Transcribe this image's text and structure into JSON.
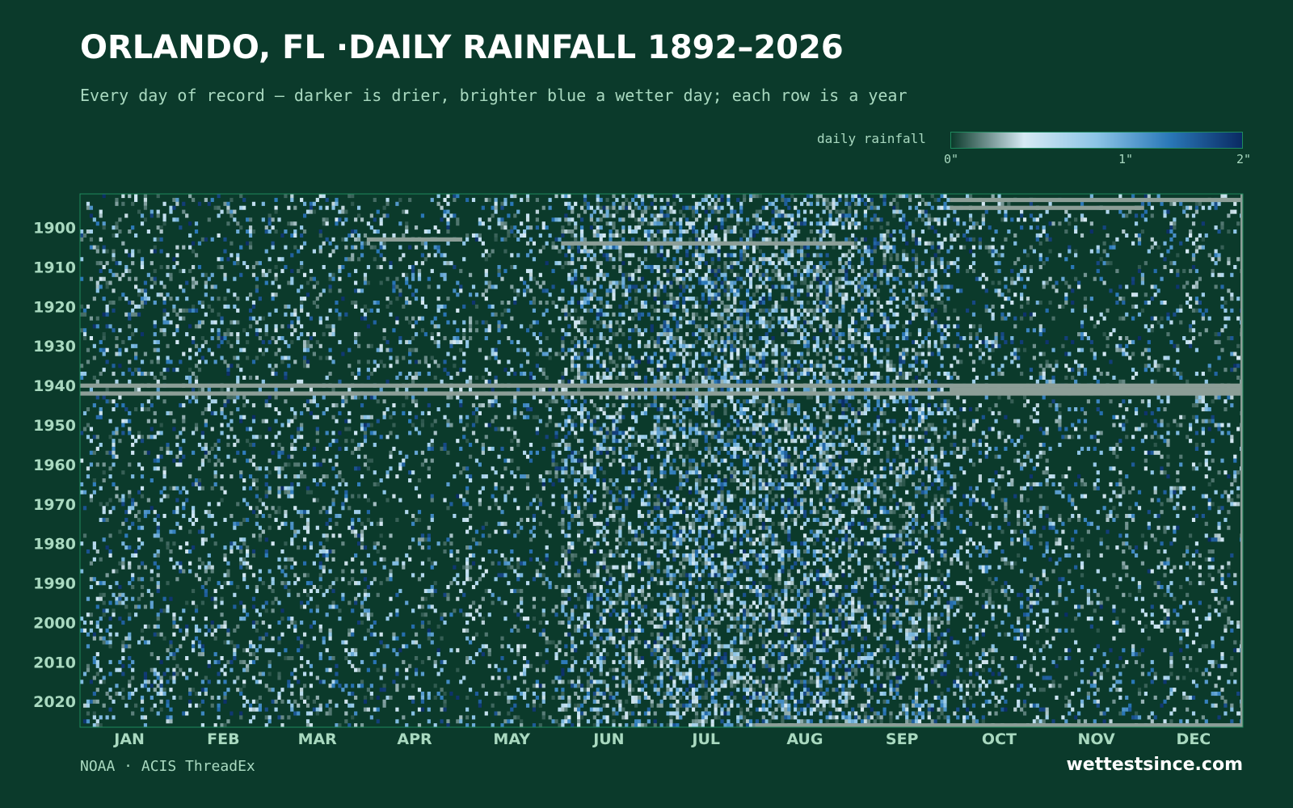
{
  "title": "ORLANDO, FL ·DAILY RAINFALL 1892–2026",
  "subtitle": "Every day of record — darker is drier, brighter blue a wetter day; each row is a year",
  "legend": {
    "label": "daily rainfall",
    "ticks": [
      "0\"",
      "1\"",
      "2\""
    ],
    "tick_values": [
      0,
      1,
      2
    ],
    "scale_colors": [
      "#0b3a2b",
      "#d6e9f3",
      "#8cc4e6",
      "#2a78b8",
      "#0a2a63"
    ]
  },
  "source": "NOAA · ACIS ThreadEx",
  "brand": "wettestsince.com",
  "colors": {
    "background": "#0b3a2b",
    "missing": "#8c9e97",
    "frame": "#1f8a5e"
  },
  "chart_data": {
    "type": "heatmap",
    "title": "ORLANDO, FL ·DAILY RAINFALL 1892–2026",
    "xlabel": "",
    "ylabel": "",
    "x_categories": [
      "JAN",
      "FEB",
      "MAR",
      "APR",
      "MAY",
      "JUN",
      "JUL",
      "AUG",
      "SEP",
      "OCT",
      "NOV",
      "DEC"
    ],
    "month_days": [
      31,
      28,
      31,
      30,
      31,
      30,
      31,
      31,
      30,
      31,
      30,
      31
    ],
    "y_range": [
      1892,
      2026
    ],
    "y_ticks": [
      1900,
      1910,
      1920,
      1930,
      1940,
      1950,
      1960,
      1970,
      1980,
      1990,
      2000,
      2010,
      2020
    ],
    "value_range_inches": [
      0,
      2
    ],
    "wet_day_probability_by_month": [
      0.19,
      0.19,
      0.2,
      0.16,
      0.18,
      0.38,
      0.46,
      0.45,
      0.38,
      0.2,
      0.15,
      0.18
    ],
    "missing_spans": [
      {
        "year": 1893,
        "from": "Oct 1",
        "to": "Dec 31"
      },
      {
        "year": 1895,
        "from": "Oct 1",
        "to": "Nov 30"
      },
      {
        "year": 1903,
        "from": "Apr 1",
        "to": "Apr 30"
      },
      {
        "year": 1904,
        "from": "Jun 1",
        "to": "Aug 31"
      },
      {
        "year": 1940,
        "from": "Jan 1",
        "to": "Dec 31"
      },
      {
        "year": 1941,
        "from": "Oct 1",
        "to": "Dec 31"
      },
      {
        "year": 1942,
        "from": "Jan 1",
        "to": "Dec 31"
      },
      {
        "year": 2026,
        "from": "Aug 1",
        "to": "Dec 31"
      }
    ],
    "grid": false,
    "legend_position": "top-right"
  }
}
